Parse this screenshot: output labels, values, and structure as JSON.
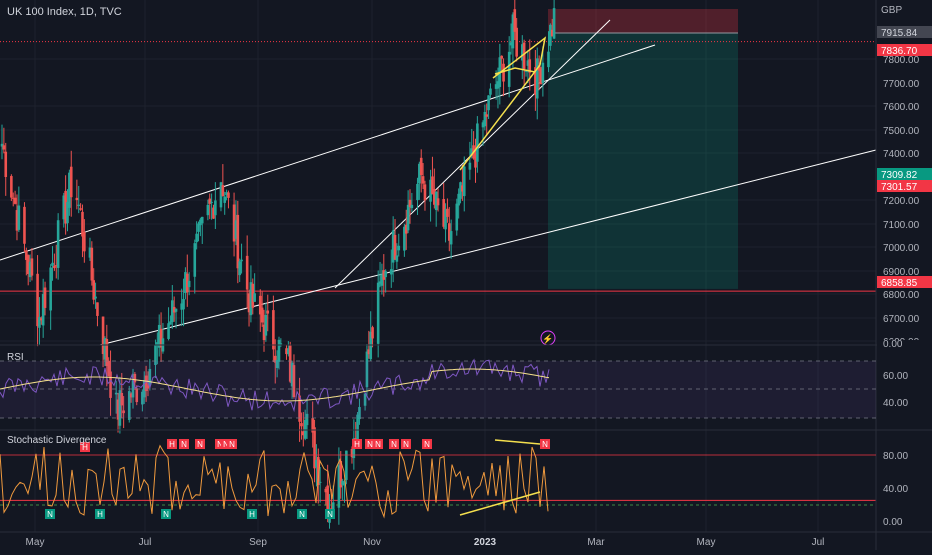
{
  "header": {
    "title": "UK 100 Index, 1D, TVC",
    "currency": "GBP"
  },
  "price_axis_ticks": [
    "7800.00",
    "7700.00",
    "7600.00",
    "7500.00",
    "7400.00",
    "7200.00",
    "7100.00",
    "7000.00",
    "6900.00",
    "6800.00",
    "6700.00",
    "6600.00"
  ],
  "price_labels": [
    {
      "text": "7915.84",
      "value": 7915.84,
      "bg": "#434651",
      "fg": "#d1d4dc"
    },
    {
      "text": "7836.70",
      "value": 7836.7,
      "bg": "#f23645",
      "fg": "#ffffff"
    },
    {
      "text": "7309.82",
      "value": 7309.82,
      "bg": "#089981",
      "fg": "#ffffff"
    },
    {
      "text": "7301.57",
      "value": 7301.57,
      "bg": "#f23645",
      "fg": "#ffffff"
    },
    {
      "text": "6858.85",
      "value": 6858.85,
      "bg": "#f23645",
      "fg": "#ffffff"
    }
  ],
  "rsi": {
    "title": "RSI",
    "axis_ticks": [
      "60.00",
      "40.00"
    ],
    "top_label": "0.00"
  },
  "stoch": {
    "title": "Stochastic Divergence",
    "axis_ticks": [
      "80.00",
      "40.00",
      "0.00"
    ]
  },
  "x_axis_labels": [
    "May",
    "Jul",
    "Sep",
    "Nov",
    "2023",
    "Mar",
    "May",
    "Jul"
  ],
  "colors": {
    "background": "#131722",
    "up": "#26a69a",
    "down": "#ef5350",
    "rsi_line": "#7e57c2",
    "rsi_ma": "#f5e08c",
    "stoch_line": "#f09a3e",
    "trend_line": "#ffffff",
    "wedge": "#f5e04e"
  },
  "chart_data": {
    "type": "candlestick",
    "title": "UK 100 Index, 1D, TVC",
    "x_range": [
      "2022-04-20",
      "2023-07-31"
    ],
    "y_range": [
      6600,
      7950
    ],
    "horizontal_levels": [
      7836.7,
      7309.82,
      7301.57,
      6858.85
    ],
    "position_tool": {
      "entry": 7915.84,
      "stop": 7950,
      "target": 7309.82
    },
    "approx_path": [
      {
        "x": "2022-04-20",
        "close": 7620
      },
      {
        "x": "2022-05-10",
        "close": 7250
      },
      {
        "x": "2022-05-28",
        "close": 7550
      },
      {
        "x": "2022-06-20",
        "close": 7050
      },
      {
        "x": "2022-07-05",
        "close": 7120
      },
      {
        "x": "2022-07-25",
        "close": 7300
      },
      {
        "x": "2022-08-15",
        "close": 7550
      },
      {
        "x": "2022-08-31",
        "close": 7280
      },
      {
        "x": "2022-09-20",
        "close": 7150
      },
      {
        "x": "2022-10-12",
        "close": 6850
      },
      {
        "x": "2022-10-25",
        "close": 7000
      },
      {
        "x": "2022-11-10",
        "close": 7350
      },
      {
        "x": "2022-11-30",
        "close": 7550
      },
      {
        "x": "2022-12-15",
        "close": 7420
      },
      {
        "x": "2023-01-05",
        "close": 7700
      },
      {
        "x": "2023-01-18",
        "close": 7850
      },
      {
        "x": "2023-01-31",
        "close": 7760
      },
      {
        "x": "2023-02-10",
        "close": 7900
      }
    ],
    "rsi": {
      "guide_levels": [
        70,
        50,
        30
      ],
      "last": 60
    },
    "stochastic": {
      "levels": [
        80,
        20
      ],
      "markers": [
        "H",
        "N",
        "H",
        "N",
        "N",
        "N",
        "N",
        "N",
        "N",
        "N",
        "N",
        "N",
        "N",
        "N",
        "N",
        "H",
        "H",
        "H",
        "N",
        "N",
        "N",
        "N"
      ]
    }
  }
}
